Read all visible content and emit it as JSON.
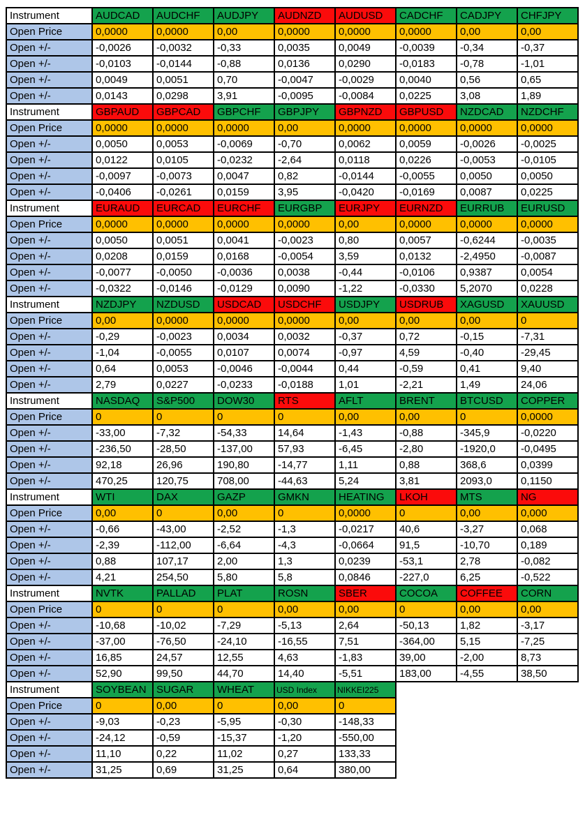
{
  "labels": {
    "instrument": "Instrument",
    "open_price": "Open Price",
    "open_change": "Open +/-"
  },
  "colors": {
    "green": "#14A24D",
    "red": "#FB0B0B",
    "orange": "#FFC000",
    "blue": "#AEC6E8",
    "border": "#000000",
    "cell_bg": "#FFFFFF"
  },
  "blocks": [
    {
      "columns": [
        {
          "name": "AUDCAD",
          "color": "green",
          "open_price": "0,0000",
          "changes": [
            "-0,0026",
            "-0,0103",
            "0,0049",
            "0,0143"
          ]
        },
        {
          "name": "AUDCHF",
          "color": "green",
          "open_price": "0,0000",
          "changes": [
            "-0,0032",
            "-0,0144",
            "0,0051",
            "0,0298"
          ]
        },
        {
          "name": "AUDJPY",
          "color": "green",
          "open_price": "0,00",
          "changes": [
            "-0,33",
            "-0,88",
            "0,70",
            "3,91"
          ]
        },
        {
          "name": "AUDNZD",
          "color": "red",
          "open_price": "0,0000",
          "changes": [
            "0,0035",
            "0,0136",
            "-0,0047",
            "-0,0095"
          ]
        },
        {
          "name": "AUDUSD",
          "color": "red",
          "open_price": "0,0000",
          "changes": [
            "0,0049",
            "0,0290",
            "-0,0029",
            "-0,0084"
          ]
        },
        {
          "name": "CADCHF",
          "color": "green",
          "open_price": "0,0000",
          "changes": [
            "-0,0039",
            "-0,0183",
            "0,0040",
            "0,0225"
          ]
        },
        {
          "name": "CADJPY",
          "color": "green",
          "open_price": "0,00",
          "changes": [
            "-0,34",
            "-0,78",
            "0,56",
            "3,08"
          ]
        },
        {
          "name": "CHFJPY",
          "color": "green",
          "open_price": "0,00",
          "changes": [
            "-0,37",
            "-1,01",
            "0,65",
            "1,89"
          ]
        }
      ]
    },
    {
      "columns": [
        {
          "name": "GBPAUD",
          "color": "red",
          "open_price": "0,0000",
          "changes": [
            "0,0050",
            "0,0122",
            "-0,0097",
            "-0,0406"
          ]
        },
        {
          "name": "GBPCAD",
          "color": "red",
          "open_price": "0,0000",
          "changes": [
            "0,0053",
            "0,0105",
            "-0,0073",
            "-0,0261"
          ]
        },
        {
          "name": "GBPCHF",
          "color": "green",
          "open_price": "0,0000",
          "changes": [
            "-0,0069",
            "-0,0232",
            "0,0047",
            "0,0159"
          ]
        },
        {
          "name": "GBPJPY",
          "color": "green",
          "open_price": "0,00",
          "changes": [
            "-0,70",
            "-2,64",
            "0,82",
            "3,95"
          ]
        },
        {
          "name": "GBPNZD",
          "color": "red",
          "open_price": "0,0000",
          "changes": [
            "0,0062",
            "0,0118",
            "-0,0144",
            "-0,0420"
          ]
        },
        {
          "name": "GBPUSD",
          "color": "red",
          "open_price": "0,0000",
          "changes": [
            "0,0059",
            "0,0226",
            "-0,0055",
            "-0,0169"
          ]
        },
        {
          "name": "NZDCAD",
          "color": "green",
          "open_price": "0,0000",
          "changes": [
            "-0,0026",
            "-0,0053",
            "0,0050",
            "0,0087"
          ]
        },
        {
          "name": "NZDCHF",
          "color": "green",
          "open_price": "0,0000",
          "changes": [
            "-0,0025",
            "-0,0105",
            "0,0050",
            "0,0225"
          ]
        }
      ]
    },
    {
      "columns": [
        {
          "name": "EURAUD",
          "color": "red",
          "open_price": "0,0000",
          "changes": [
            "0,0050",
            "0,0208",
            "-0,0077",
            "-0,0322"
          ]
        },
        {
          "name": "EURCAD",
          "color": "red",
          "open_price": "0,0000",
          "changes": [
            "0,0051",
            "0,0159",
            "-0,0050",
            "-0,0146"
          ]
        },
        {
          "name": "EURCHF",
          "color": "red",
          "open_price": "0,0000",
          "changes": [
            "0,0041",
            "0,0168",
            "-0,0036",
            "-0,0129"
          ]
        },
        {
          "name": "EURGBP",
          "color": "green",
          "open_price": "0,0000",
          "changes": [
            "-0,0023",
            "-0,0054",
            "0,0038",
            "0,0090"
          ]
        },
        {
          "name": "EURJPY",
          "color": "red",
          "open_price": "0,00",
          "changes": [
            "0,80",
            "3,59",
            "-0,44",
            "-1,22"
          ]
        },
        {
          "name": "EURNZD",
          "color": "red",
          "open_price": "0,0000",
          "changes": [
            "0,0057",
            "0,0132",
            "-0,0106",
            "-0,0330"
          ]
        },
        {
          "name": "EURRUB",
          "color": "green",
          "open_price": "0,0000",
          "changes": [
            "-0,6244",
            "-2,4950",
            "0,9387",
            "5,2070"
          ]
        },
        {
          "name": "EURUSD",
          "color": "green",
          "open_price": "0,0000",
          "changes": [
            "-0,0035",
            "-0,0087",
            "0,0054",
            "0,0228"
          ]
        }
      ]
    },
    {
      "columns": [
        {
          "name": "NZDJPY",
          "color": "green",
          "open_price": "0,00",
          "changes": [
            "-0,29",
            "-1,04",
            "0,64",
            "2,79"
          ]
        },
        {
          "name": "NZDUSD",
          "color": "green",
          "open_price": "0,0000",
          "changes": [
            "-0,0023",
            "-0,0055",
            "0,0053",
            "0,0227"
          ]
        },
        {
          "name": "USDCAD",
          "color": "red",
          "open_price": "0,0000",
          "changes": [
            "0,0034",
            "0,0107",
            "-0,0046",
            "-0,0233"
          ]
        },
        {
          "name": "USDCHF",
          "color": "red",
          "open_price": "0,0000",
          "changes": [
            "0,0032",
            "0,0074",
            "-0,0044",
            "-0,0188"
          ]
        },
        {
          "name": "USDJPY",
          "color": "green",
          "open_price": "0,00",
          "changes": [
            "-0,37",
            "-0,97",
            "0,44",
            "1,01"
          ]
        },
        {
          "name": "USDRUB",
          "color": "red",
          "open_price": "0,00",
          "changes": [
            "0,72",
            "4,59",
            "-0,59",
            "-2,21"
          ]
        },
        {
          "name": "XAGUSD",
          "color": "green",
          "open_price": "0,00",
          "changes": [
            "-0,15",
            "-0,40",
            "0,41",
            "1,49"
          ]
        },
        {
          "name": "XAUUSD",
          "color": "green",
          "open_price": "0",
          "changes": [
            "-7,31",
            "-29,45",
            "9,40",
            "24,06"
          ]
        }
      ]
    },
    {
      "columns": [
        {
          "name": "NASDAQ",
          "color": "green",
          "open_price": "0",
          "changes": [
            "-33,00",
            "-236,50",
            "92,18",
            "470,25"
          ]
        },
        {
          "name": "S&P500",
          "color": "green",
          "open_price": "0",
          "changes": [
            "-7,32",
            "-28,50",
            "26,96",
            "120,75"
          ]
        },
        {
          "name": "DOW30",
          "color": "green",
          "open_price": "0",
          "changes": [
            "-54,33",
            "-137,00",
            "190,80",
            "708,00"
          ]
        },
        {
          "name": "RTS",
          "color": "red",
          "open_price": "0",
          "changes": [
            "14,64",
            "57,93",
            "-14,77",
            "-44,63"
          ]
        },
        {
          "name": "AFLT",
          "color": "green",
          "open_price": "0,00",
          "changes": [
            "-1,43",
            "-6,45",
            "1,11",
            "5,24"
          ]
        },
        {
          "name": "BRENT",
          "color": "green",
          "open_price": "0,00",
          "changes": [
            "-0,88",
            "-2,80",
            "0,88",
            "3,81"
          ]
        },
        {
          "name": "BTCUSD",
          "color": "green",
          "open_price": "0",
          "changes": [
            "-345,9",
            "-1920,0",
            "368,6",
            "2093,0"
          ]
        },
        {
          "name": "COPPER",
          "color": "green",
          "open_price": "0,0000",
          "changes": [
            "-0,0220",
            "-0,0495",
            "0,0399",
            "0,1150"
          ]
        }
      ]
    },
    {
      "columns": [
        {
          "name": "WTI",
          "color": "green",
          "open_price": "0,00",
          "changes": [
            "-0,66",
            "-2,39",
            "0,88",
            "4,21"
          ]
        },
        {
          "name": "DAX",
          "color": "green",
          "open_price": "0",
          "changes": [
            "-43,00",
            "-112,00",
            "107,17",
            "254,50"
          ]
        },
        {
          "name": "GAZP",
          "color": "green",
          "open_price": "0,00",
          "changes": [
            "-2,52",
            "-6,64",
            "2,00",
            "5,80"
          ]
        },
        {
          "name": "GMKN",
          "color": "green",
          "open_price": "0",
          "changes": [
            "-1,3",
            "-4,3",
            "1,3",
            "5,8"
          ]
        },
        {
          "name": "HEATING",
          "color": "green",
          "open_price": "0,0000",
          "changes": [
            "-0,0217",
            "-0,0664",
            "0,0239",
            "0,0846"
          ]
        },
        {
          "name": "LKOH",
          "color": "red",
          "open_price": "0",
          "changes": [
            "40,6",
            "91,5",
            "-53,1",
            "-227,0"
          ]
        },
        {
          "name": "MTS",
          "color": "green",
          "open_price": "0,00",
          "changes": [
            "-3,27",
            "-10,70",
            "2,78",
            "6,25"
          ]
        },
        {
          "name": "NG",
          "color": "red",
          "open_price": "0,000",
          "changes": [
            "0,068",
            "0,189",
            "-0,082",
            "-0,522"
          ]
        }
      ]
    },
    {
      "columns": [
        {
          "name": "NVTK",
          "color": "green",
          "open_price": "0",
          "changes": [
            "-10,68",
            "-37,00",
            "16,85",
            "52,90"
          ]
        },
        {
          "name": "PALLAD",
          "color": "green",
          "open_price": "0",
          "changes": [
            "-10,02",
            "-76,50",
            "24,57",
            "99,50"
          ]
        },
        {
          "name": "PLAT",
          "color": "green",
          "open_price": "0",
          "changes": [
            "-7,29",
            "-24,10",
            "12,55",
            "44,70"
          ]
        },
        {
          "name": "ROSN",
          "color": "green",
          "open_price": "0,00",
          "changes": [
            "-5,13",
            "-16,55",
            "4,63",
            "14,40"
          ]
        },
        {
          "name": "SBER",
          "color": "red",
          "open_price": "0,00",
          "changes": [
            "2,64",
            "7,51",
            "-1,83",
            "-5,51"
          ]
        },
        {
          "name": "COCOA",
          "color": "green",
          "open_price": "0",
          "changes": [
            "-50,13",
            "-364,00",
            "39,00",
            "183,00"
          ]
        },
        {
          "name": "COFFEE",
          "color": "red",
          "open_price": "0,00",
          "changes": [
            "1,82",
            "5,15",
            "-2,00",
            "-4,55"
          ]
        },
        {
          "name": "CORN",
          "color": "green",
          "open_price": "0,00",
          "changes": [
            "-3,17",
            "-7,25",
            "8,73",
            "38,50"
          ]
        }
      ]
    },
    {
      "columns": [
        {
          "name": "SOYBEAN",
          "color": "green",
          "open_price": "0",
          "changes": [
            "-9,03",
            "-24,12",
            "11,10",
            "31,25"
          ]
        },
        {
          "name": "SUGAR",
          "color": "green",
          "open_price": "0,00",
          "changes": [
            "-0,23",
            "-0,59",
            "0,22",
            "0,69"
          ]
        },
        {
          "name": "WHEAT",
          "color": "green",
          "open_price": "0",
          "changes": [
            "-5,95",
            "-15,37",
            "11,02",
            "31,25"
          ]
        },
        {
          "name": "USD Index",
          "color": "green",
          "small": true,
          "open_price": "0,00",
          "changes": [
            "-0,30",
            "-1,20",
            "0,27",
            "0,64"
          ]
        },
        {
          "name": "NIKKEI225",
          "color": "green",
          "small": true,
          "open_price": "0",
          "changes": [
            "-148,33",
            "-550,00",
            "133,33",
            "380,00"
          ]
        }
      ]
    }
  ]
}
